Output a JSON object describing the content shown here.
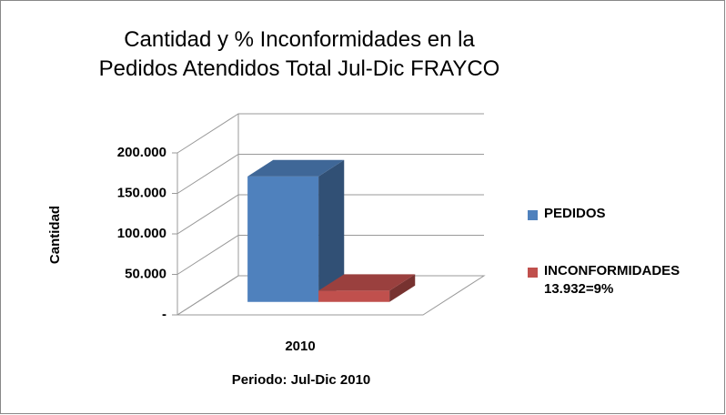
{
  "chart_data": {
    "type": "bar3d",
    "title": "Cantidad y % Inconformidades en la Pedidos Atendidos Total Jul-Dic FRAYCO",
    "categories": [
      "2010"
    ],
    "series": [
      {
        "name": "PEDIDOS",
        "color": "#4f81bd",
        "values": [
          155000
        ]
      },
      {
        "name": "INCONFORMIDADES 13.932=9%",
        "color": "#c0504d",
        "values": [
          13932
        ]
      }
    ],
    "ylabel": "Cantidad",
    "xlabel": "Periodo: Jul-Dic 2010",
    "ylim": [
      0,
      200000
    ],
    "yticks": [
      {
        "value": 0,
        "label": "-"
      },
      {
        "value": 50000,
        "label": "50.000"
      },
      {
        "value": 100000,
        "label": "100.000"
      },
      {
        "value": 150000,
        "label": "150.000"
      },
      {
        "value": 200000,
        "label": "200.000"
      }
    ],
    "grid": true,
    "legend": "right"
  }
}
